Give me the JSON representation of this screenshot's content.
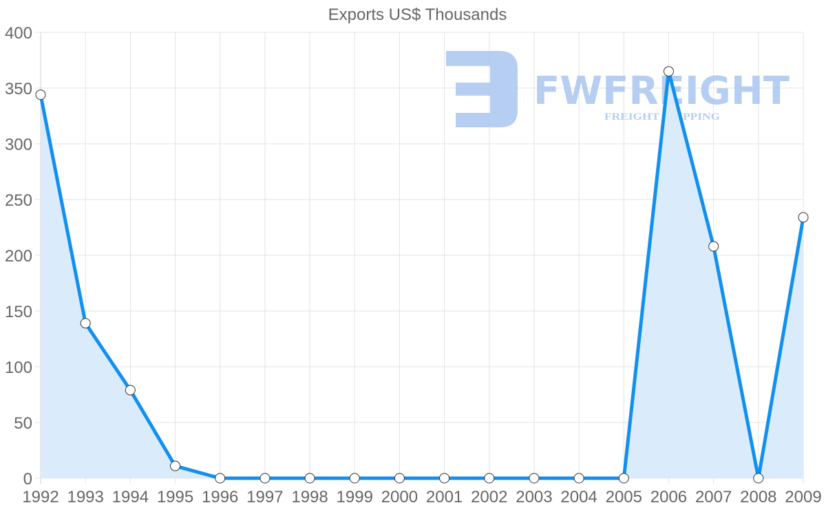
{
  "chart_data": {
    "type": "line",
    "title": "Exports US$ Thousands",
    "xlabel": "",
    "ylabel": "",
    "categories": [
      "1992",
      "1993",
      "1994",
      "1995",
      "1996",
      "1997",
      "1998",
      "1999",
      "2000",
      "2001",
      "2002",
      "2003",
      "2004",
      "2005",
      "2006",
      "2007",
      "2008",
      "2009"
    ],
    "series": [
      {
        "name": "Exports US$ Thousands",
        "values": [
          344,
          139,
          79,
          11,
          0,
          0,
          0,
          0,
          0,
          0,
          0,
          0,
          0,
          0,
          365,
          208,
          0,
          234
        ],
        "line_color": "#1290f0",
        "fill_color": "#d8ebfc",
        "filled": true
      }
    ],
    "ylim": [
      0,
      400
    ],
    "yticks": [
      0,
      50,
      100,
      150,
      200,
      250,
      300,
      350,
      400
    ],
    "grid": true,
    "legend": "none"
  },
  "watermark": {
    "brand": "FWFREIGHT",
    "tagline": "FREIGHT SHIPPING",
    "color": "#a9c6f0"
  }
}
